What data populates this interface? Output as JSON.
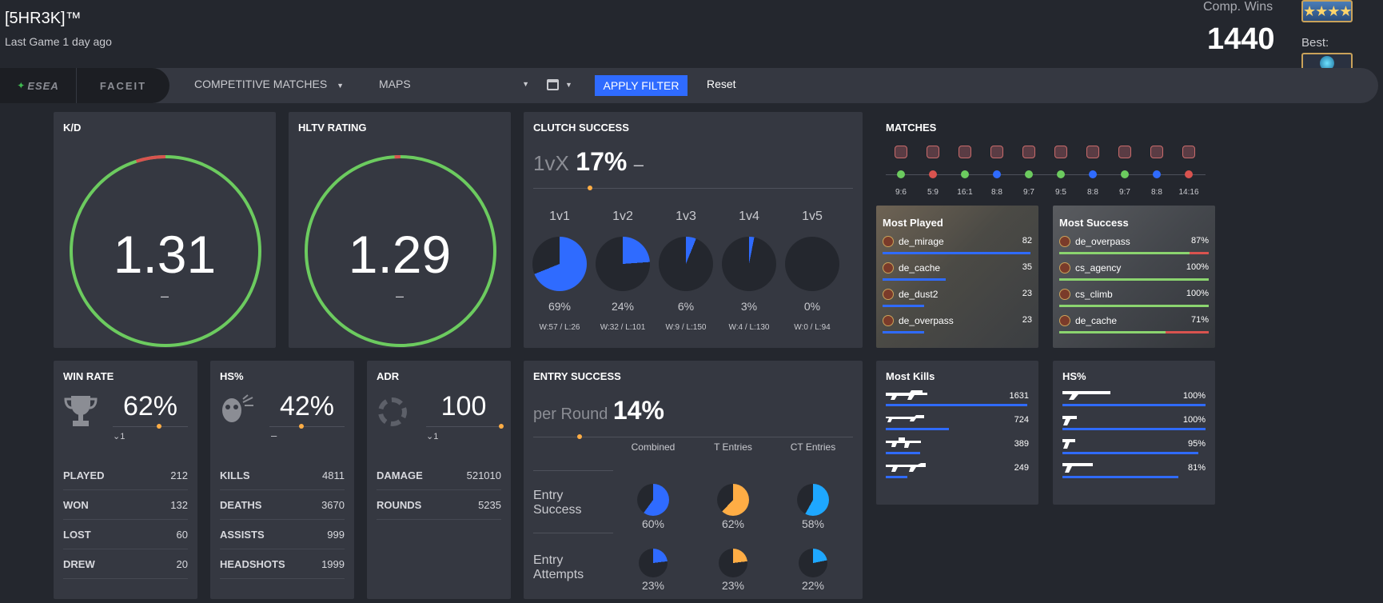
{
  "header": {
    "player_name": "[5HR3K]™",
    "last_game": "Last Game 1 day ago",
    "comp_wins_label": "Comp. Wins",
    "comp_wins_value": "1440",
    "best_label": "Best:"
  },
  "filter": {
    "esea": "ESEA",
    "faceit": "FACEIT",
    "competitive": "COMPETITIVE MATCHES",
    "maps": "MAPS",
    "apply": "APPLY FILTER",
    "reset": "Reset"
  },
  "kd": {
    "title": "K/D",
    "value": "1.31",
    "delta": "–",
    "ratio": 0.95
  },
  "hltv": {
    "title": "HLTV RATING",
    "value": "1.29",
    "delta": "–",
    "ratio": 0.99
  },
  "clutch": {
    "title": "CLUTCH SUCCESS",
    "prefix": "1vX",
    "value": "17%",
    "delta": "–",
    "items": [
      {
        "label": "1v1",
        "pct": "69%",
        "record": "W:57 / L:26",
        "frac": 0.69
      },
      {
        "label": "1v2",
        "pct": "24%",
        "record": "W:32 / L:101",
        "frac": 0.24
      },
      {
        "label": "1v3",
        "pct": "6%",
        "record": "W:9 / L:150",
        "frac": 0.06
      },
      {
        "label": "1v4",
        "pct": "3%",
        "record": "W:4 / L:130",
        "frac": 0.03
      },
      {
        "label": "1v5",
        "pct": "0%",
        "record": "W:0 / L:94",
        "frac": 0.0
      }
    ]
  },
  "matches": {
    "title": "MATCHES",
    "list": [
      {
        "score": "9:6",
        "result": "win"
      },
      {
        "score": "5:9",
        "result": "loss"
      },
      {
        "score": "16:1",
        "result": "win"
      },
      {
        "score": "8:8",
        "result": "draw"
      },
      {
        "score": "9:7",
        "result": "win"
      },
      {
        "score": "9:5",
        "result": "win"
      },
      {
        "score": "8:8",
        "result": "draw"
      },
      {
        "score": "9:7",
        "result": "win"
      },
      {
        "score": "8:8",
        "result": "draw"
      },
      {
        "score": "14:16",
        "result": "loss"
      }
    ]
  },
  "most_played": {
    "title": "Most Played",
    "maps": [
      {
        "name": "de_mirage",
        "value": "82",
        "frac": 0.99
      },
      {
        "name": "de_cache",
        "value": "35",
        "frac": 0.42
      },
      {
        "name": "de_dust2",
        "value": "23",
        "frac": 0.28
      },
      {
        "name": "de_overpass",
        "value": "23",
        "frac": 0.28
      }
    ]
  },
  "most_success": {
    "title": "Most Success",
    "maps": [
      {
        "name": "de_overpass",
        "value": "87%",
        "frac": 0.87
      },
      {
        "name": "cs_agency",
        "value": "100%",
        "frac": 1.0
      },
      {
        "name": "cs_climb",
        "value": "100%",
        "frac": 1.0
      },
      {
        "name": "de_cache",
        "value": "71%",
        "frac": 0.71
      }
    ]
  },
  "winrate": {
    "title": "WIN RATE",
    "value": "62%",
    "sub": "1",
    "rows": [
      {
        "k": "PLAYED",
        "v": "212"
      },
      {
        "k": "WON",
        "v": "132"
      },
      {
        "k": "LOST",
        "v": "60"
      },
      {
        "k": "DREW",
        "v": "20"
      }
    ]
  },
  "hs": {
    "title": "HS%",
    "value": "42%",
    "sub": "–",
    "rows": [
      {
        "k": "KILLS",
        "v": "4811"
      },
      {
        "k": "DEATHS",
        "v": "3670"
      },
      {
        "k": "ASSISTS",
        "v": "999"
      },
      {
        "k": "HEADSHOTS",
        "v": "1999"
      }
    ]
  },
  "adr": {
    "title": "ADR",
    "value": "100",
    "sub": "1",
    "rows": [
      {
        "k": "DAMAGE",
        "v": "521010"
      },
      {
        "k": "ROUNDS",
        "v": "5235"
      }
    ]
  },
  "entry": {
    "title": "ENTRY SUCCESS",
    "prefix": "per Round",
    "value": "14%",
    "cols": [
      "Combined",
      "T Entries",
      "CT Entries"
    ],
    "success_label": "Entry Success",
    "attempts_label": "Entry Attempts",
    "success": [
      {
        "pct": "60%",
        "frac": 0.6,
        "color": "#2f6bff"
      },
      {
        "pct": "62%",
        "frac": 0.62,
        "color": "#ffad45"
      },
      {
        "pct": "58%",
        "frac": 0.58,
        "color": "#1ea7ff"
      }
    ],
    "attempts": [
      {
        "pct": "23%",
        "frac": 0.23,
        "color": "#2f6bff"
      },
      {
        "pct": "23%",
        "frac": 0.23,
        "color": "#ffad45"
      },
      {
        "pct": "22%",
        "frac": 0.22,
        "color": "#1ea7ff"
      }
    ]
  },
  "most_kills": {
    "title": "Most Kills",
    "weapons": [
      {
        "value": "1631",
        "frac": 0.99
      },
      {
        "value": "724",
        "frac": 0.44
      },
      {
        "value": "389",
        "frac": 0.24
      },
      {
        "value": "249",
        "frac": 0.15
      }
    ]
  },
  "hs_weapons": {
    "title": "HS%",
    "weapons": [
      {
        "value": "100%",
        "frac": 1.0
      },
      {
        "value": "100%",
        "frac": 1.0
      },
      {
        "value": "95%",
        "frac": 0.95
      },
      {
        "value": "81%",
        "frac": 0.81
      }
    ]
  },
  "colors": {
    "green": "#6ccb5f",
    "red": "#d9534f",
    "blue": "#2f6bff",
    "orange": "#ffad45",
    "card": "#353841"
  }
}
